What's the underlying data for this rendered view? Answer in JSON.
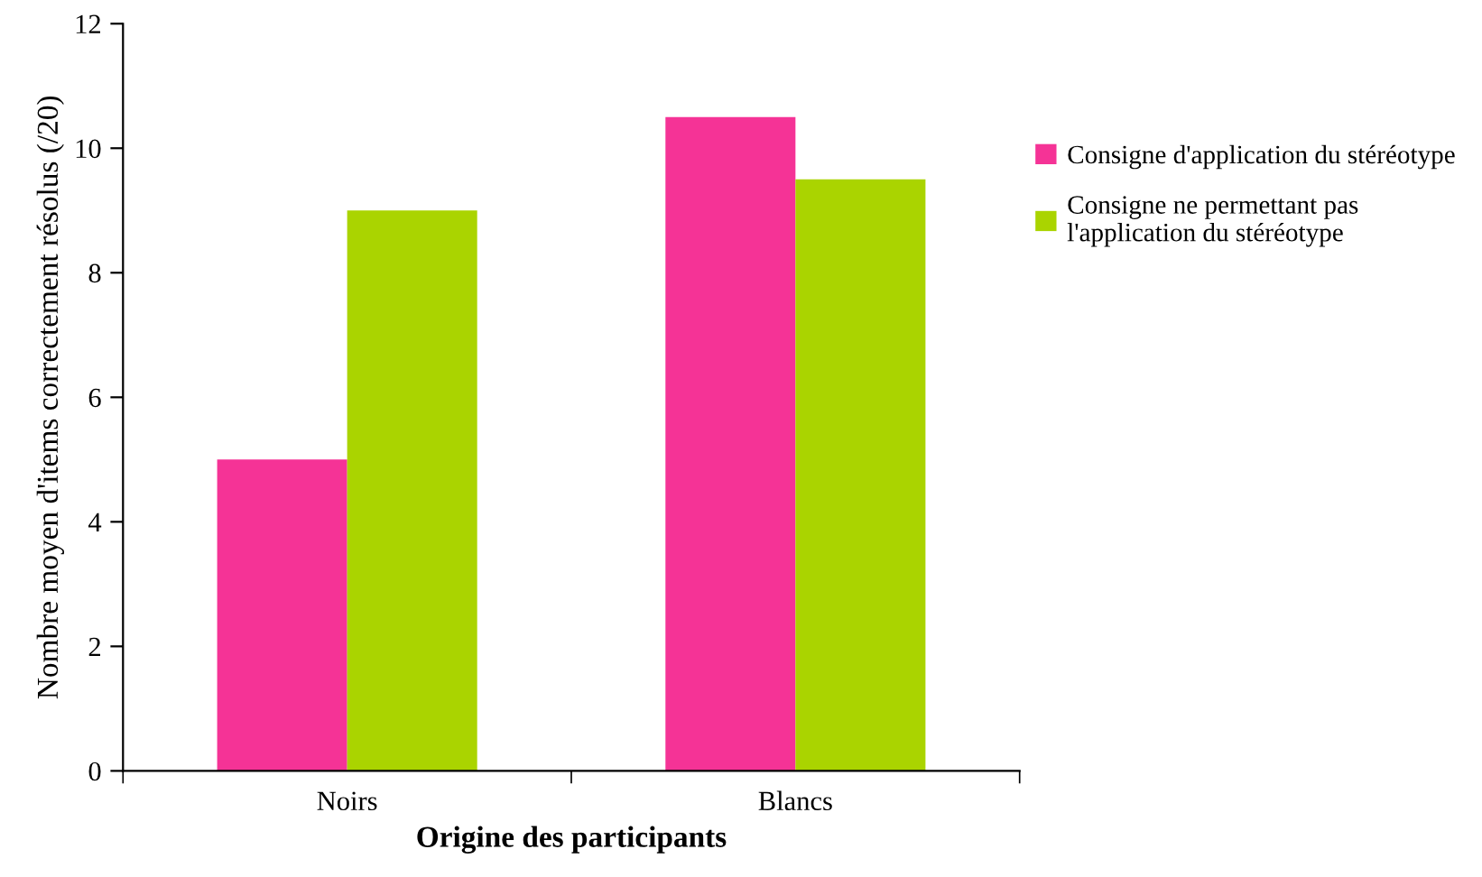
{
  "chart_data": {
    "type": "bar",
    "xlabel": "Origine des participants",
    "ylabel": "Nombre moyen d'items correctement résolus (/20)",
    "categories": [
      "Noirs",
      "Blancs"
    ],
    "series": [
      {
        "name": "Consigne d'application du stéréotype",
        "color": "#f53396",
        "values": [
          5,
          10.5
        ]
      },
      {
        "name": "Consigne ne permettant pas\nl'application du stéréotype",
        "color": "#aad400",
        "values": [
          9,
          9.5
        ]
      }
    ],
    "ylim": [
      0,
      12
    ],
    "yticks": [
      0,
      2,
      4,
      6,
      8,
      10,
      12
    ],
    "grid": false,
    "legend": "right"
  }
}
